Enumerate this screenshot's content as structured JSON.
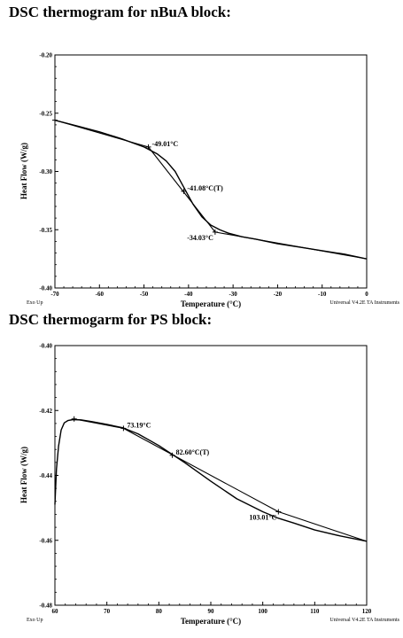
{
  "chart_data": [
    {
      "type": "line",
      "title": "DSC thermogram for nBuA block:",
      "xlabel": "Temperature (°C)",
      "ylabel": "Heat Flow (W/g)",
      "xlim": [
        -70,
        0
      ],
      "ylim": [
        -0.4,
        -0.2
      ],
      "x_ticks": [
        "-70",
        "-60",
        "-50",
        "-40",
        "-30",
        "-20",
        "-10",
        "0"
      ],
      "y_ticks": [
        "-0.20",
        "-0.25",
        "-0.30",
        "-0.35",
        "-0.40"
      ],
      "left_note": "Exo Up",
      "right_note": "Universal V4.2E TA Instruments",
      "series": [
        {
          "x": [
            -70,
            -65,
            -60,
            -55,
            -50,
            -47,
            -45,
            -43,
            -41,
            -39,
            -37,
            -35,
            -33,
            -31,
            -28,
            -25,
            -20,
            -15,
            -10,
            -5,
            0
          ],
          "y": [
            -0.256,
            -0.261,
            -0.266,
            -0.272,
            -0.279,
            -0.285,
            -0.291,
            -0.3,
            -0.314,
            -0.328,
            -0.339,
            -0.346,
            -0.35,
            -0.353,
            -0.356,
            -0.358,
            -0.362,
            -0.365,
            -0.368,
            -0.371,
            -0.375
          ]
        }
      ],
      "tangent_lines": [
        {
          "x": [
            -70,
            -49.01
          ],
          "y": [
            -0.256,
            -0.279
          ]
        },
        {
          "x": [
            -49.01,
            -34.03
          ],
          "y": [
            -0.279,
            -0.352
          ]
        },
        {
          "x": [
            -34.03,
            0
          ],
          "y": [
            -0.352,
            -0.375
          ]
        }
      ],
      "markers": [
        {
          "x": -70,
          "y": -0.256
        },
        {
          "x": -49.01,
          "y": -0.279
        },
        {
          "x": -41.08,
          "y": -0.317
        },
        {
          "x": -34.03,
          "y": -0.352
        }
      ],
      "annotations": [
        {
          "text": "-49.01°C",
          "x": -49.01,
          "y": -0.279,
          "pos": "right"
        },
        {
          "text": "-41.08°C(T)",
          "x": -41.08,
          "y": -0.317,
          "pos": "right"
        },
        {
          "text": "-34.03°C",
          "x": -34.03,
          "y": -0.352,
          "pos": "left"
        }
      ]
    },
    {
      "type": "line",
      "title": "DSC thermogarm for PS block:",
      "xlabel": "Temperature (°C)",
      "ylabel": "Heat Flow (W/g)",
      "xlim": [
        60,
        120
      ],
      "ylim": [
        -0.48,
        -0.4
      ],
      "x_ticks": [
        "60",
        "70",
        "80",
        "90",
        "100",
        "110",
        "120"
      ],
      "y_ticks": [
        "-0.40",
        "-0.42",
        "-0.44",
        "-0.46",
        "-0.48"
      ],
      "left_note": "Exo Up",
      "right_note": "Universal V4.2E TA Instruments",
      "series": [
        {
          "x": [
            60,
            60.3,
            60.7,
            61.2,
            61.8,
            62.5,
            63.5,
            65,
            67,
            70,
            73,
            76,
            80,
            85,
            90,
            95,
            100,
            103,
            106,
            110,
            115,
            120
          ],
          "y": [
            -0.449,
            -0.438,
            -0.431,
            -0.426,
            -0.4238,
            -0.4231,
            -0.4228,
            -0.4229,
            -0.4234,
            -0.4243,
            -0.4253,
            -0.4272,
            -0.4308,
            -0.4361,
            -0.4418,
            -0.4472,
            -0.4512,
            -0.4532,
            -0.4547,
            -0.4568,
            -0.4587,
            -0.4603
          ]
        }
      ],
      "tangent_lines": [
        {
          "x": [
            63.7,
            73.19
          ],
          "y": [
            -0.4226,
            -0.4255
          ]
        },
        {
          "x": [
            73.19,
            103.01
          ],
          "y": [
            -0.4255,
            -0.4512
          ]
        },
        {
          "x": [
            103.01,
            120
          ],
          "y": [
            -0.4512,
            -0.4603
          ]
        }
      ],
      "markers": [
        {
          "x": 63.7,
          "y": -0.4226
        },
        {
          "x": 73.19,
          "y": -0.4255
        },
        {
          "x": 82.6,
          "y": -0.4338
        },
        {
          "x": 103.01,
          "y": -0.4512
        }
      ],
      "annotations": [
        {
          "text": "73.19°C",
          "x": 73.19,
          "y": -0.4255,
          "pos": "right"
        },
        {
          "text": "82.60°C(T)",
          "x": 82.6,
          "y": -0.4338,
          "pos": "right"
        },
        {
          "text": "103.01°C",
          "x": 103.01,
          "y": -0.4512,
          "pos": "left"
        }
      ]
    }
  ]
}
